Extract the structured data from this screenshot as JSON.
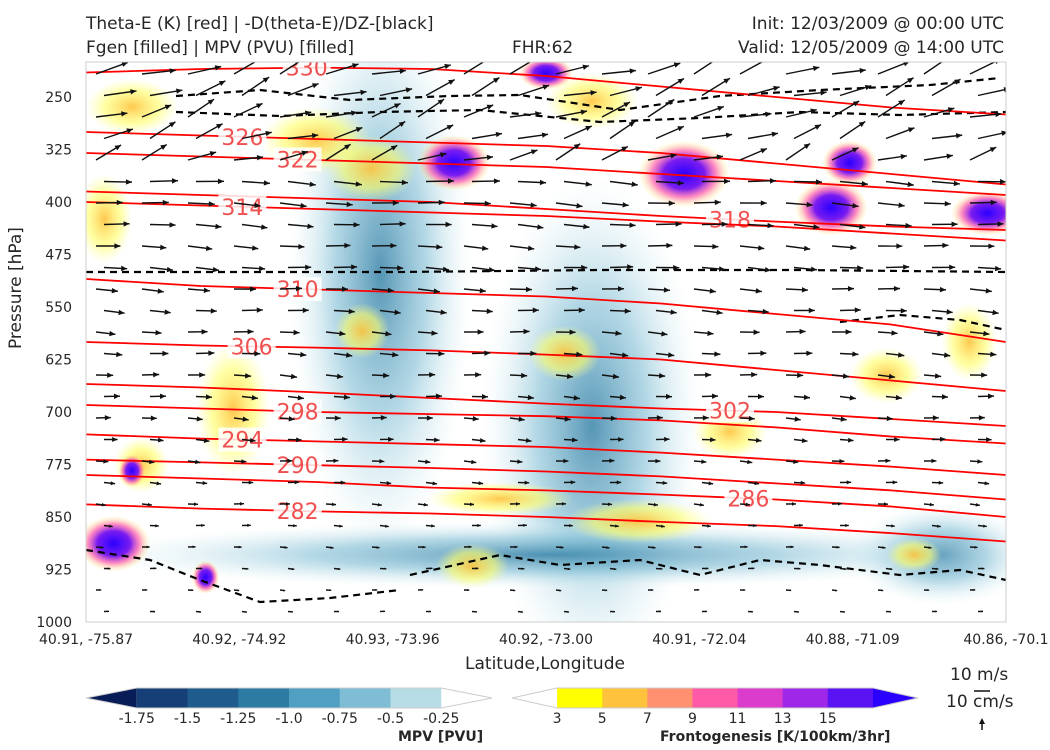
{
  "header": {
    "title_left_1": "Theta-E (K) [red] | -D(theta-E)/DZ-[black]",
    "title_left_2": "Fgen [filled] | MPV (PVU) [filled]",
    "fhr": "FHR:62",
    "init": "Init: 12/03/2009 @ 00:00 UTC",
    "valid": "Valid: 12/05/2009 @ 14:00 UTC"
  },
  "chart_data": {
    "type": "cross-section",
    "xlabel": "Latitude,Longitude",
    "ylabel": "Pressure [hPa]",
    "y_ticks": [
      250,
      325,
      400,
      475,
      550,
      625,
      700,
      775,
      850,
      925,
      1000
    ],
    "ylim": [
      1000,
      200
    ],
    "y_scale": "linear",
    "x_ticks": [
      "40.91, -75.87",
      "40.92, -74.92",
      "40.93, -73.96",
      "40.92, -73.00",
      "40.91, -72.04",
      "40.88, -71.09",
      "40.86, -70.1"
    ],
    "theta_e_contours": [
      {
        "label": "330",
        "pressure": [
          215,
          210,
          208,
          210,
          220,
          235,
          250,
          265,
          275
        ],
        "label_x": 0.24
      },
      {
        "label": "326",
        "pressure": [
          300,
          305,
          310,
          315,
          320,
          330,
          345,
          360,
          375
        ],
        "label_x": 0.17
      },
      {
        "label": "322",
        "pressure": [
          330,
          335,
          340,
          345,
          350,
          360,
          370,
          380,
          390
        ],
        "label_x": 0.23
      },
      {
        "label": "318",
        "pressure": [
          385,
          390,
          395,
          400,
          410,
          420,
          428,
          435,
          440
        ],
        "label_x": 0.7
      },
      {
        "label": "314",
        "pressure": [
          400,
          405,
          410,
          415,
          420,
          428,
          435,
          445,
          455
        ],
        "label_x": 0.17
      },
      {
        "label": "310",
        "pressure": [
          510,
          520,
          525,
          530,
          535,
          545,
          560,
          575,
          600
        ],
        "label_x": 0.23
      },
      {
        "label": "306",
        "pressure": [
          600,
          605,
          608,
          612,
          618,
          625,
          640,
          655,
          670
        ],
        "label_x": 0.18
      },
      {
        "label": "302",
        "pressure": [
          660,
          665,
          672,
          680,
          688,
          695,
          700,
          710,
          720
        ],
        "label_x": 0.7
      },
      {
        "label": "298",
        "pressure": [
          690,
          695,
          700,
          703,
          706,
          712,
          722,
          735,
          745
        ],
        "label_x": 0.23
      },
      {
        "label": "294",
        "pressure": [
          732,
          738,
          742,
          746,
          750,
          758,
          768,
          778,
          790
        ],
        "label_x": 0.17
      },
      {
        "label": "290",
        "pressure": [
          768,
          772,
          776,
          780,
          785,
          792,
          802,
          812,
          825
        ],
        "label_x": 0.23
      },
      {
        "label": "286",
        "pressure": [
          790,
          795,
          800,
          808,
          812,
          818,
          825,
          835,
          850
        ],
        "label_x": 0.72
      },
      {
        "label": "282",
        "pressure": [
          832,
          838,
          842,
          845,
          850,
          857,
          863,
          873,
          885
        ],
        "label_x": 0.23
      }
    ],
    "contour_x": [
      0,
      0.125,
      0.25,
      0.375,
      0.5,
      0.625,
      0.75,
      0.875,
      1
    ],
    "vector_key": [
      "10 m/s",
      "10 cm/s"
    ],
    "mpv_colorbar": {
      "label": "MPV [PVU]",
      "ticks": [
        "-1.75",
        "-1.5",
        "-1.25",
        "-1.0",
        "-0.75",
        "-0.5",
        "-0.25"
      ],
      "colors": [
        "#081d58",
        "#163f78",
        "#205b8d",
        "#2b7ba3",
        "#4fa0c2",
        "#7fbdd4",
        "#b6dce6",
        "#ffffff"
      ]
    },
    "fgen_colorbar": {
      "label": "Frontogenesis [K/100km/3hr]",
      "ticks": [
        "3",
        "5",
        "7",
        "9",
        "11",
        "13",
        "15"
      ],
      "colors": [
        "#ffffff",
        "#ffff00",
        "#ffc23c",
        "#ff9070",
        "#ff5aa8",
        "#dc3ccc",
        "#9f28e8",
        "#5a14f4",
        "#2b00ff"
      ]
    }
  }
}
